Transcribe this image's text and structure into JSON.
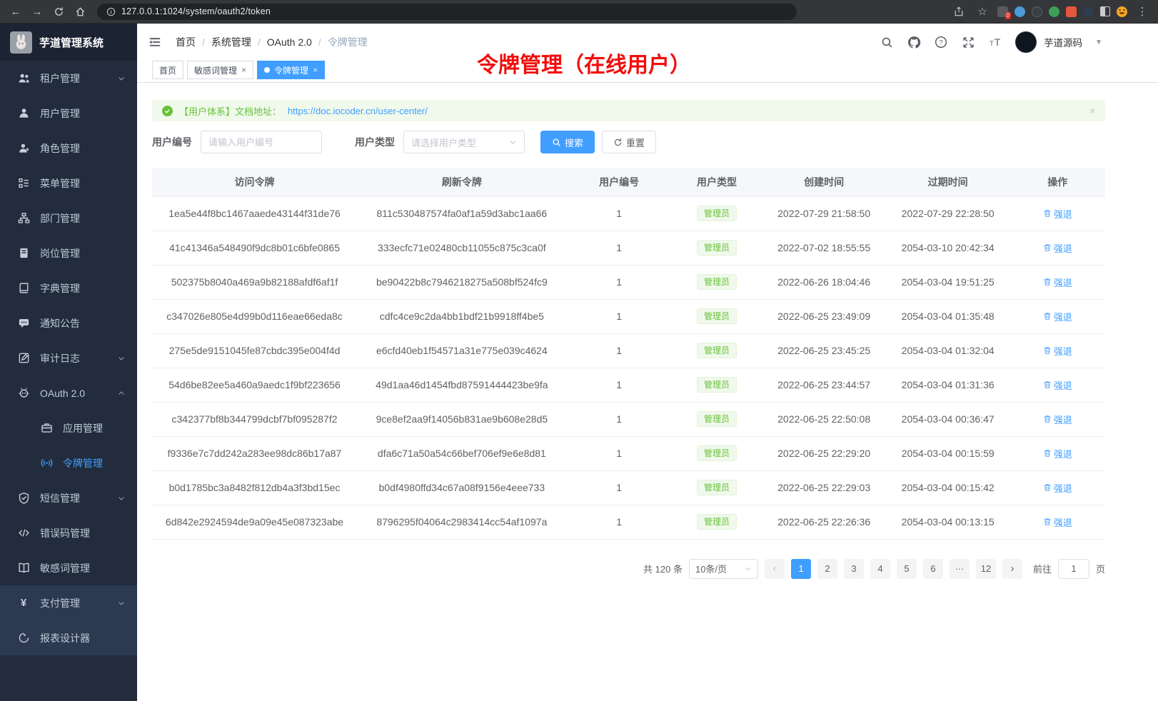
{
  "browser": {
    "url": "127.0.0.1:1024/system/oauth2/token"
  },
  "app": {
    "title": "芋道管理系统",
    "breadcrumb": [
      "首页",
      "系统管理",
      "OAuth 2.0",
      "令牌管理"
    ],
    "annotation": "令牌管理（在线用户）",
    "user_name": "芋道源码"
  },
  "tabs": [
    {
      "label": "首页",
      "closable": false,
      "active": false
    },
    {
      "label": "敏感词管理",
      "closable": true,
      "active": false
    },
    {
      "label": "令牌管理",
      "closable": true,
      "active": true
    }
  ],
  "sidebar": {
    "items": [
      {
        "label": "租户管理",
        "icon": "users",
        "chevron": "down"
      },
      {
        "label": "用户管理",
        "icon": "user"
      },
      {
        "label": "角色管理",
        "icon": "role"
      },
      {
        "label": "菜单管理",
        "icon": "menu-tree"
      },
      {
        "label": "部门管理",
        "icon": "org"
      },
      {
        "label": "岗位管理",
        "icon": "badge"
      },
      {
        "label": "字典管理",
        "icon": "dict"
      },
      {
        "label": "通知公告",
        "icon": "notice"
      },
      {
        "label": "审计日志",
        "icon": "log",
        "chevron": "down"
      },
      {
        "label": "OAuth 2.0",
        "icon": "oauth",
        "chevron": "up"
      },
      {
        "label": "应用管理",
        "icon": "app",
        "sub": true
      },
      {
        "label": "令牌管理",
        "icon": "token",
        "sub": true,
        "active": true
      },
      {
        "label": "短信管理",
        "icon": "sms",
        "chevron": "down"
      },
      {
        "label": "错误码管理",
        "icon": "code"
      },
      {
        "label": "敏感词管理",
        "icon": "book"
      },
      {
        "label": "支付管理",
        "icon": "pay",
        "chevron": "down",
        "light": true
      },
      {
        "label": "报表设计器",
        "icon": "report",
        "light": true
      }
    ]
  },
  "alert": {
    "text": "【用户体系】文档地址：",
    "link": "https://doc.iocoder.cn/user-center/",
    "close": "×"
  },
  "filters": {
    "user_id_label": "用户编号",
    "user_id_placeholder": "请输入用户编号",
    "user_type_label": "用户类型",
    "user_type_placeholder": "请选择用户类型",
    "search_label": "搜索",
    "reset_label": "重置"
  },
  "table": {
    "headers": [
      "访问令牌",
      "刷新令牌",
      "用户编号",
      "用户类型",
      "创建时间",
      "过期时间",
      "操作"
    ],
    "rows": [
      {
        "access_token": "1ea5e44f8bc1467aaede43144f31de76",
        "refresh_token": "811c530487574fa0af1a59d3abc1aa66",
        "user_id": "1",
        "user_type": "管理员",
        "create_time": "2022-07-29 21:58:50",
        "expire_time": "2022-07-29 22:28:50",
        "action": "强退"
      },
      {
        "access_token": "41c41346a548490f9dc8b01c6bfe0865",
        "refresh_token": "333ecfc71e02480cb11055c875c3ca0f",
        "user_id": "1",
        "user_type": "管理员",
        "create_time": "2022-07-02 18:55:55",
        "expire_time": "2054-03-10 20:42:34",
        "action": "强退"
      },
      {
        "access_token": "502375b8040a469a9b82188afdf6af1f",
        "refresh_token": "be90422b8c7946218275a508bf524fc9",
        "user_id": "1",
        "user_type": "管理员",
        "create_time": "2022-06-26 18:04:46",
        "expire_time": "2054-03-04 19:51:25",
        "action": "强退"
      },
      {
        "access_token": "c347026e805e4d99b0d116eae66eda8c",
        "refresh_token": "cdfc4ce9c2da4bb1bdf21b9918ff4be5",
        "user_id": "1",
        "user_type": "管理员",
        "create_time": "2022-06-25 23:49:09",
        "expire_time": "2054-03-04 01:35:48",
        "action": "强退"
      },
      {
        "access_token": "275e5de9151045fe87cbdc395e004f4d",
        "refresh_token": "e6cfd40eb1f54571a31e775e039c4624",
        "user_id": "1",
        "user_type": "管理员",
        "create_time": "2022-06-25 23:45:25",
        "expire_time": "2054-03-04 01:32:04",
        "action": "强退"
      },
      {
        "access_token": "54d6be82ee5a460a9aedc1f9bf223656",
        "refresh_token": "49d1aa46d1454fbd87591444423be9fa",
        "user_id": "1",
        "user_type": "管理员",
        "create_time": "2022-06-25 23:44:57",
        "expire_time": "2054-03-04 01:31:36",
        "action": "强退"
      },
      {
        "access_token": "c342377bf8b344799dcbf7bf095287f2",
        "refresh_token": "9ce8ef2aa9f14056b831ae9b608e28d5",
        "user_id": "1",
        "user_type": "管理员",
        "create_time": "2022-06-25 22:50:08",
        "expire_time": "2054-03-04 00:36:47",
        "action": "强退"
      },
      {
        "access_token": "f9336e7c7dd242a283ee98dc86b17a87",
        "refresh_token": "dfa6c71a50a54c66bef706ef9e6e8d81",
        "user_id": "1",
        "user_type": "管理员",
        "create_time": "2022-06-25 22:29:20",
        "expire_time": "2054-03-04 00:15:59",
        "action": "强退"
      },
      {
        "access_token": "b0d1785bc3a8482f812db4a3f3bd15ec",
        "refresh_token": "b0df4980ffd34c67a08f9156e4eee733",
        "user_id": "1",
        "user_type": "管理员",
        "create_time": "2022-06-25 22:29:03",
        "expire_time": "2054-03-04 00:15:42",
        "action": "强退"
      },
      {
        "access_token": "6d842e2924594de9a09e45e087323abe",
        "refresh_token": "8796295f04064c2983414cc54af1097a",
        "user_id": "1",
        "user_type": "管理员",
        "create_time": "2022-06-25 22:26:36",
        "expire_time": "2054-03-04 00:13:15",
        "action": "强退"
      }
    ]
  },
  "pagination": {
    "total_label": "共 120 条",
    "page_size": "10条/页",
    "prev": "‹",
    "next": "›",
    "pages": [
      "1",
      "2",
      "3",
      "4",
      "5",
      "6",
      "···",
      "12"
    ],
    "active_page": "1",
    "goto_label": "前往",
    "goto_value": "1",
    "goto_suffix": "页"
  },
  "colors": {
    "primary": "#409eff",
    "success": "#67c23a",
    "sidebar_bg": "#222c3c",
    "annotation_red": "#f20d0d"
  }
}
